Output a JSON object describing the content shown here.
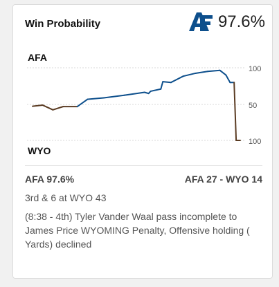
{
  "header": {
    "title": "Win Probability",
    "leader_logo": "afa-logo",
    "leader_value": "97.6%"
  },
  "colors": {
    "afa": "#0d4f8c",
    "wyo": "#5a3b22",
    "grid": "#d9d9d9"
  },
  "chart": {
    "top_team": "AFA",
    "bottom_team": "WYO",
    "y_tick_labels": [
      "100",
      "50",
      "100"
    ]
  },
  "chart_data": {
    "type": "line",
    "y_meaning": "win probability margin: positive = AFA, negative = WYO",
    "ylim": [
      -100,
      100
    ],
    "points": [
      [
        0,
        -5
      ],
      [
        5,
        -2
      ],
      [
        10,
        -15
      ],
      [
        15,
        -6
      ],
      [
        22,
        -6
      ],
      [
        27,
        14
      ],
      [
        35,
        18
      ],
      [
        45,
        25
      ],
      [
        55,
        33
      ],
      [
        57,
        30
      ],
      [
        58,
        36
      ],
      [
        63,
        42
      ],
      [
        64,
        62
      ],
      [
        68,
        60
      ],
      [
        74,
        77
      ],
      [
        80,
        85
      ],
      [
        86,
        90
      ],
      [
        92,
        93
      ],
      [
        95,
        80
      ],
      [
        97,
        60
      ],
      [
        99,
        60
      ],
      [
        100,
        -100
      ],
      [
        102,
        -100
      ]
    ]
  },
  "summary": {
    "probability": "AFA 97.6%",
    "score": "AFA 27  - WYO 14",
    "situation": "3rd & 6 at WYO 43",
    "play": "(8:38 - 4th) Tyler Vander Waal pass incomplete to James Price WYOMING Penalty, Offensive holding ( Yards) declined"
  }
}
